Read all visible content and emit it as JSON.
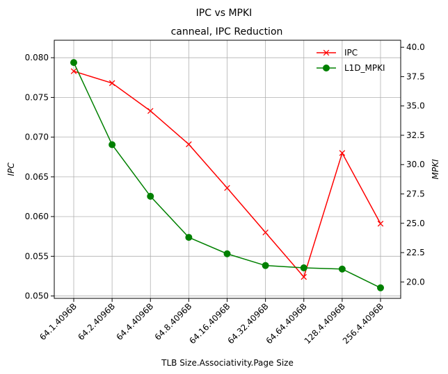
{
  "chart_data": {
    "type": "line",
    "suptitle": "IPC vs MPKI",
    "title": "canneal, IPC Reduction",
    "xlabel": "TLB Size.Associativity.Page Size",
    "ylabel_left": "IPC",
    "ylabel_right": "MPKI",
    "categories": [
      "64.1.4096B",
      "64.2.4096B",
      "64.4.4096B",
      "64.8.4096B",
      "64.16.4096B",
      "64.32.4096B",
      "64.64.4096B",
      "128.4.4096B",
      "256.4.4096B"
    ],
    "y_left": {
      "range": [
        0.0497,
        0.0822
      ],
      "ticks": [
        "0.050",
        "0.055",
        "0.060",
        "0.065",
        "0.070",
        "0.075",
        "0.080"
      ]
    },
    "y_right": {
      "range": [
        18.6,
        40.6
      ],
      "ticks": [
        "20.0",
        "22.5",
        "25.0",
        "27.5",
        "30.0",
        "32.5",
        "35.0",
        "37.5",
        "40.0"
      ]
    },
    "grid": true,
    "legend_position": "top-right",
    "series": [
      {
        "name": "IPC",
        "axis": "left",
        "color": "#ff0000",
        "marker": "x",
        "values": [
          0.0783,
          0.0768,
          0.0733,
          0.0691,
          0.0636,
          0.058,
          0.0524,
          0.068,
          0.0591
        ]
      },
      {
        "name": "L1D_MPKI",
        "axis": "right",
        "color": "#008000",
        "marker": "o",
        "values": [
          38.7,
          31.7,
          27.3,
          23.8,
          22.4,
          21.4,
          21.2,
          21.1,
          19.5
        ]
      }
    ]
  }
}
